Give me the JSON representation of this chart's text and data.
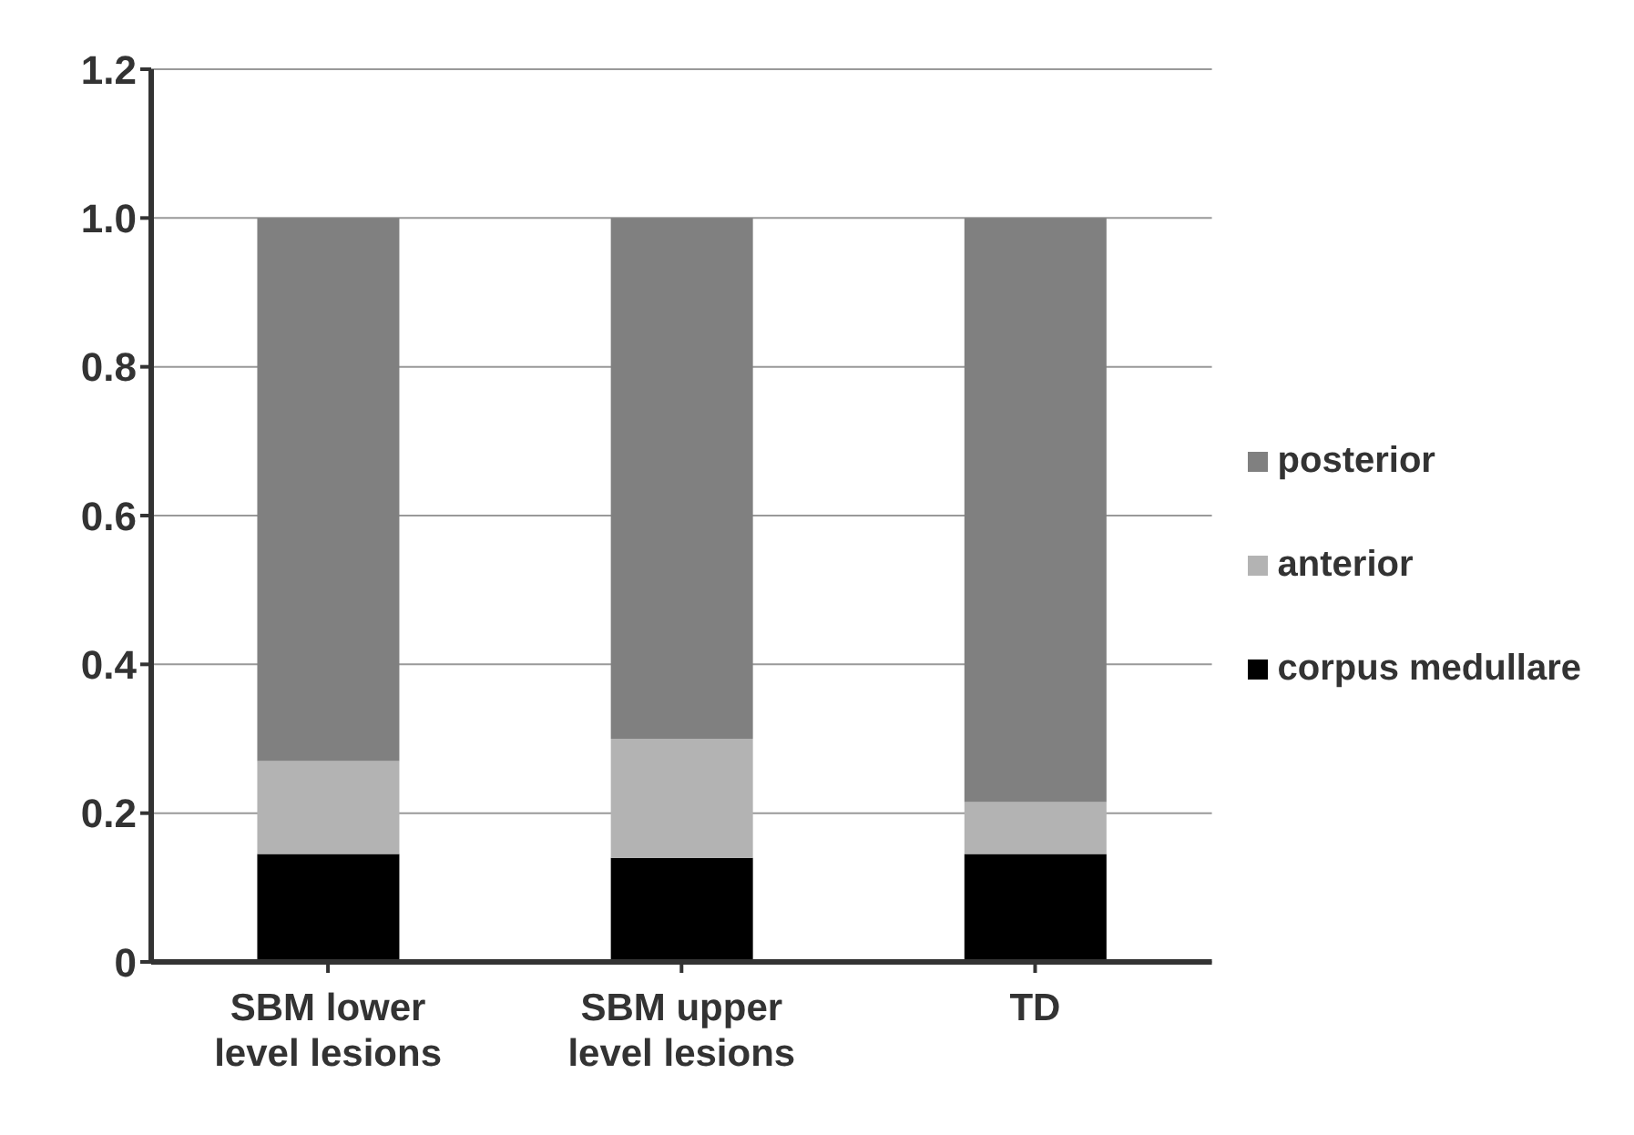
{
  "chart_data": {
    "type": "bar",
    "stacked": true,
    "categories": [
      "SBM lower level lesions",
      "SBM upper level lesions",
      "TD"
    ],
    "series": [
      {
        "name": "corpus medullare",
        "color": "#000000",
        "values": [
          0.145,
          0.14,
          0.145
        ]
      },
      {
        "name": "anterior",
        "color": "#b3b3b3",
        "values": [
          0.125,
          0.16,
          0.07
        ]
      },
      {
        "name": "posterior",
        "color": "#808080",
        "values": [
          0.73,
          0.7,
          0.785
        ]
      }
    ],
    "ylim": [
      0,
      1.2
    ],
    "yticks": [
      0,
      0.2,
      0.4,
      0.6,
      0.8,
      {
        "value": 1,
        "label": "1.0"
      },
      1.2
    ],
    "grid": "y",
    "legend": "right"
  }
}
